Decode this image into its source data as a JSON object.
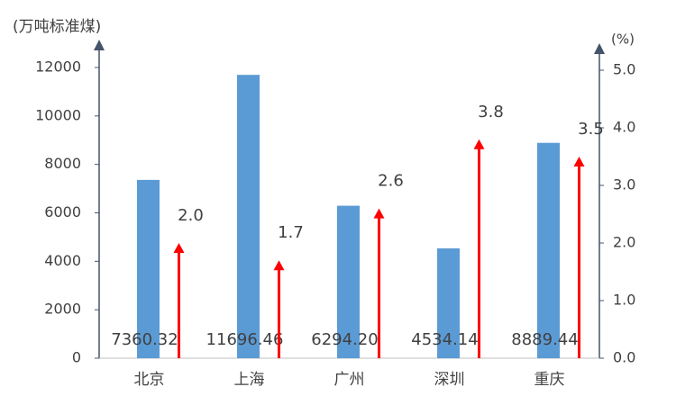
{
  "chart_data": {
    "type": "bar",
    "y_label": "(万吨标准煤)",
    "y2_label": "(%)",
    "categories": [
      "北京",
      "上海",
      "广州",
      "深圳",
      "重庆"
    ],
    "series": [
      {
        "type": "bar",
        "color": "#5b9bd5",
        "values": [
          7360.32,
          11696.46,
          6294.2,
          4534.14,
          8889.44
        ],
        "value_labels": [
          "7360.32",
          "11696.46",
          "6294.20",
          "4534.14",
          "8889.44"
        ]
      },
      {
        "type": "arrow",
        "color": "#ff0000",
        "axis": "y2",
        "values": [
          2.0,
          1.7,
          2.6,
          3.8,
          3.5
        ],
        "value_labels": [
          "2.0",
          "1.7",
          "2.6",
          "3.8",
          "3.5"
        ]
      }
    ],
    "ylim": [
      0,
      12000
    ],
    "yticks": [
      0,
      2000,
      4000,
      6000,
      8000,
      10000,
      12000
    ],
    "y2lim": [
      0,
      5
    ],
    "y2ticks": [
      {
        "value": 0,
        "label": "0.0"
      },
      {
        "value": 1,
        "label": "1.0"
      },
      {
        "value": 2,
        "label": "2.0"
      },
      {
        "value": 3,
        "label": "3.0"
      },
      {
        "value": 4,
        "label": "4.0"
      },
      {
        "value": 5,
        "label": "5.0"
      }
    ]
  }
}
